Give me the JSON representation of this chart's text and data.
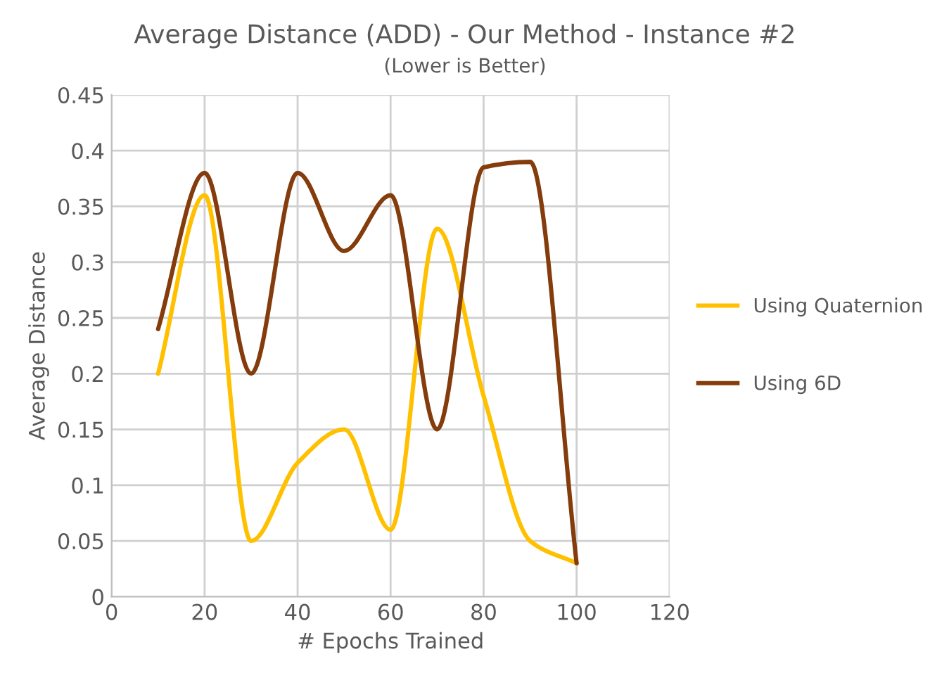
{
  "chart_data": {
    "type": "line",
    "title": "Average Distance (ADD) - Our Method - Instance #2",
    "subtitle": "(Lower is Better)",
    "xlabel": "# Epochs Trained",
    "ylabel": "Average Distance",
    "series": [
      {
        "name": "Using Quaternion",
        "color": "#ffc000",
        "x": [
          10,
          20,
          30,
          40,
          50,
          60,
          70,
          80,
          90,
          100
        ],
        "values": [
          0.2,
          0.36,
          0.05,
          0.12,
          0.15,
          0.06,
          0.33,
          0.18,
          0.05,
          0.03
        ]
      },
      {
        "name": "Using 6D",
        "color": "#843c0c",
        "x": [
          10,
          20,
          30,
          40,
          50,
          60,
          70,
          80,
          90,
          100
        ],
        "values": [
          0.24,
          0.38,
          0.2,
          0.38,
          0.31,
          0.36,
          0.15,
          0.385,
          0.39,
          0.03
        ]
      }
    ],
    "xlim": [
      0,
      120
    ],
    "xticks": [
      0,
      20,
      40,
      60,
      80,
      100,
      120
    ],
    "ylim": [
      0,
      0.45
    ],
    "yticks": [
      0,
      0.05,
      0.1,
      0.15,
      0.2,
      0.25,
      0.3,
      0.35,
      0.4,
      0.45
    ],
    "grid": true,
    "legend": "right",
    "marker": "none",
    "line_style": "solid"
  }
}
